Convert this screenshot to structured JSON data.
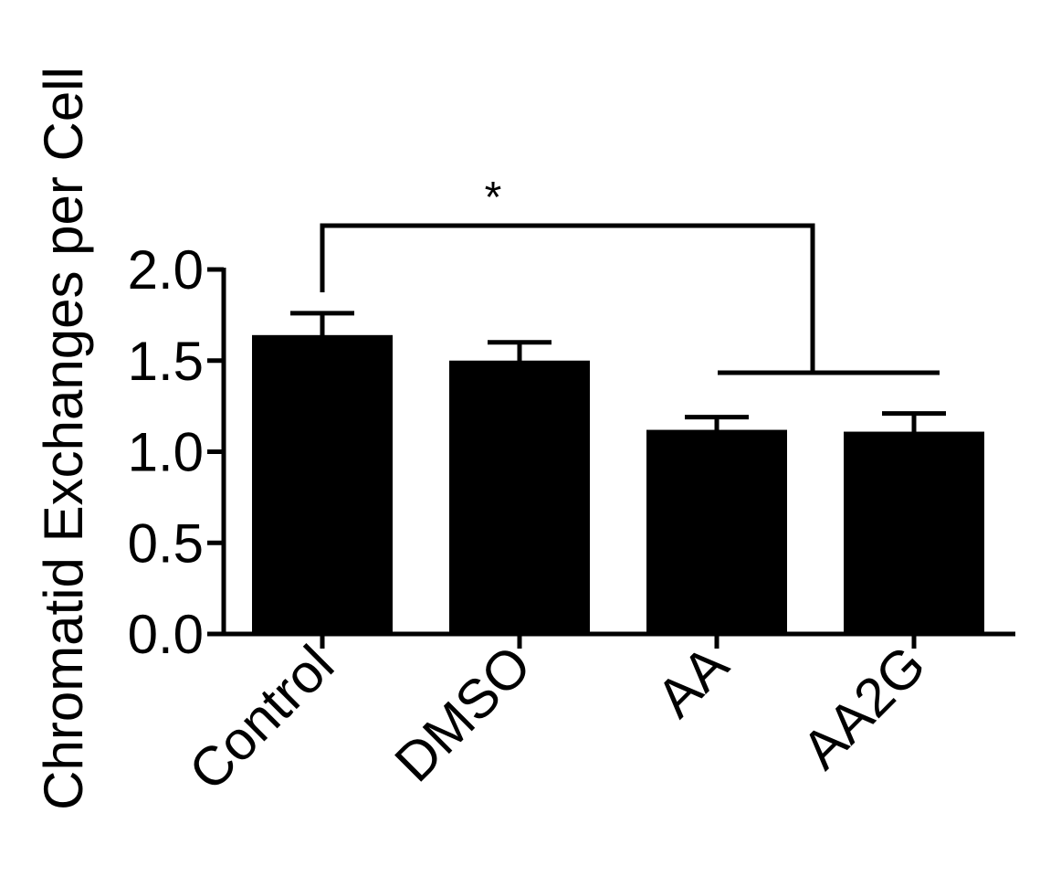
{
  "chart_data": {
    "type": "bar",
    "title": "",
    "xlabel": "",
    "ylabel": "Chromatid Exchanges per Cell",
    "categories": [
      "Control",
      "DMSO",
      "AA",
      "AA2G"
    ],
    "values": [
      1.63,
      1.49,
      1.11,
      1.1
    ],
    "errors": [
      0.13,
      0.11,
      0.08,
      0.11
    ],
    "ylim": [
      0,
      2.0
    ],
    "yticks": [
      0.0,
      0.5,
      1.0,
      1.5,
      2.0
    ],
    "ytick_labels": [
      "0.0",
      "0.5",
      "1.0",
      "1.5",
      "2.0"
    ],
    "grid": false,
    "bar_color": "#000000",
    "annotations": [
      {
        "text": "*",
        "type": "significance",
        "from": "Control",
        "to": [
          "AA",
          "AA2G"
        ]
      }
    ]
  }
}
